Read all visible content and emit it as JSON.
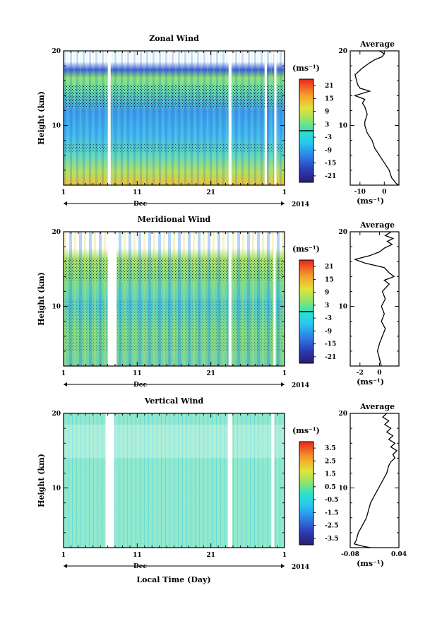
{
  "figure": {
    "xaxis_label": "Local Time (Day)",
    "month_label": "Dec",
    "year_label": "2014",
    "avg_unit_label": "(ms⁻¹)"
  },
  "chart_data": [
    {
      "type": "heatmap",
      "id": "zonal",
      "title": "Zonal Wind",
      "ylabel": "Height (km)",
      "xticks": [
        "1",
        "11",
        "21",
        "1"
      ],
      "yticks": [
        "10",
        "20"
      ],
      "xlim_day": [
        1,
        31
      ],
      "ylim_km": [
        2,
        20
      ],
      "colorbar": {
        "unit": "(ms⁻¹)",
        "range": [
          -24,
          24
        ],
        "ticks": [
          "21",
          "15",
          "9",
          "3",
          "-3",
          "-9",
          "-15",
          "-21"
        ],
        "zero_line": true
      },
      "data_gaps_day": [
        [
          7.0,
          7.4
        ],
        [
          23.4,
          23.8
        ],
        [
          28.3,
          28.6
        ],
        [
          29.6,
          29.9
        ]
      ],
      "average_profile": {
        "title": "Average",
        "xticks": [
          "-10",
          "0"
        ],
        "xlim": [
          -14,
          6
        ],
        "points": [
          [
            -2,
            20.0
          ],
          [
            0,
            19.6
          ],
          [
            -1,
            19.2
          ],
          [
            -4,
            18.8
          ],
          [
            -6,
            18.4
          ],
          [
            -9,
            17.7
          ],
          [
            -12,
            16.8
          ],
          [
            -11,
            15.5
          ],
          [
            -10,
            15.0
          ],
          [
            -6,
            14.6
          ],
          [
            -12,
            14.0
          ],
          [
            -8,
            13.5
          ],
          [
            -9,
            13.0
          ],
          [
            -8,
            12.5
          ],
          [
            -7,
            11.5
          ],
          [
            -8,
            10.5
          ],
          [
            -8,
            10.0
          ],
          [
            -7,
            9.0
          ],
          [
            -5,
            8.0
          ],
          [
            -4,
            7.0
          ],
          [
            -2,
            6.0
          ],
          [
            0,
            5.0
          ],
          [
            2,
            4.0
          ],
          [
            3,
            3.0
          ],
          [
            5,
            2.2
          ],
          [
            6,
            2.0
          ]
        ]
      }
    },
    {
      "type": "heatmap",
      "id": "meridional",
      "title": "Meridional Wind",
      "ylabel": "Height (km)",
      "xticks": [
        "1",
        "11",
        "21",
        "1"
      ],
      "yticks": [
        "10",
        "20"
      ],
      "xlim_day": [
        1,
        31
      ],
      "ylim_km": [
        2,
        20
      ],
      "colorbar": {
        "unit": "(ms⁻¹)",
        "range": [
          -24,
          24
        ],
        "ticks": [
          "21",
          "15",
          "9",
          "3",
          "-3",
          "-9",
          "-15",
          "-21"
        ],
        "zero_line": true
      },
      "data_gaps_day": [
        [
          7.0,
          8.2
        ],
        [
          23.4,
          23.8
        ],
        [
          29.5,
          29.8
        ]
      ],
      "average_profile": {
        "title": "Average",
        "xticks": [
          "-2",
          "0"
        ],
        "xlim": [
          -3,
          2
        ],
        "points": [
          [
            1.2,
            20.0
          ],
          [
            0.6,
            19.5
          ],
          [
            1.4,
            19.1
          ],
          [
            0.8,
            18.7
          ],
          [
            1.3,
            18.3
          ],
          [
            0.5,
            17.8
          ],
          [
            0.0,
            17.3
          ],
          [
            -1.0,
            16.8
          ],
          [
            -2.5,
            16.3
          ],
          [
            -1.5,
            15.8
          ],
          [
            0.5,
            15.2
          ],
          [
            1.0,
            14.5
          ],
          [
            1.5,
            14.0
          ],
          [
            0.5,
            13.5
          ],
          [
            1.0,
            13.0
          ],
          [
            0.3,
            12.0
          ],
          [
            0.6,
            11.0
          ],
          [
            0.2,
            10.0
          ],
          [
            0.5,
            9.0
          ],
          [
            0.2,
            8.0
          ],
          [
            0.6,
            7.0
          ],
          [
            0.3,
            6.0
          ],
          [
            0.0,
            5.0
          ],
          [
            -0.2,
            4.0
          ],
          [
            0.0,
            3.0
          ],
          [
            0.2,
            2.0
          ]
        ]
      }
    },
    {
      "type": "heatmap",
      "id": "vertical",
      "title": "Vertical Wind",
      "ylabel": "Height (km)",
      "xticks": [
        "1",
        "11",
        "21",
        "1"
      ],
      "yticks": [
        "10",
        "20"
      ],
      "xlim_day": [
        1,
        31
      ],
      "ylim_km": [
        2,
        20
      ],
      "colorbar": {
        "unit": "(ms⁻¹)",
        "range": [
          -4,
          4
        ],
        "ticks": [
          "3.5",
          "2.5",
          "1.5",
          "0.5",
          "-0.5",
          "-1.5",
          "-2.5",
          "-3.5"
        ],
        "zero_line": false
      },
      "data_gaps_day": [
        [
          6.7,
          7.9
        ],
        [
          23.3,
          23.9
        ],
        [
          29.2,
          29.6
        ]
      ],
      "average_profile": {
        "title": "Average",
        "xticks": [
          "-0.08",
          "0.04"
        ],
        "xlim": [
          -0.08,
          0.04
        ],
        "points": [
          [
            0.01,
            20.0
          ],
          [
            0.0,
            19.5
          ],
          [
            0.015,
            19.0
          ],
          [
            0.005,
            18.5
          ],
          [
            0.02,
            18.0
          ],
          [
            0.01,
            17.5
          ],
          [
            0.025,
            17.0
          ],
          [
            0.015,
            16.5
          ],
          [
            0.03,
            16.0
          ],
          [
            0.02,
            15.5
          ],
          [
            0.035,
            15.0
          ],
          [
            0.025,
            14.5
          ],
          [
            0.03,
            14.0
          ],
          [
            0.02,
            13.5
          ],
          [
            0.015,
            13.0
          ],
          [
            0.01,
            12.0
          ],
          [
            0.0,
            11.0
          ],
          [
            -0.01,
            10.0
          ],
          [
            -0.02,
            9.0
          ],
          [
            -0.03,
            8.0
          ],
          [
            -0.035,
            7.0
          ],
          [
            -0.04,
            6.0
          ],
          [
            -0.05,
            5.0
          ],
          [
            -0.06,
            4.0
          ],
          [
            -0.065,
            3.0
          ],
          [
            -0.07,
            2.5
          ],
          [
            -0.05,
            2.2
          ],
          [
            -0.03,
            2.0
          ]
        ]
      }
    }
  ]
}
